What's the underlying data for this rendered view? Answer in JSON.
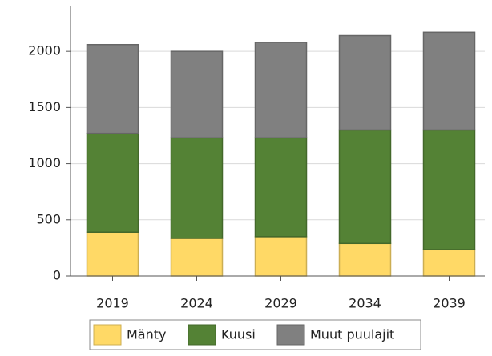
{
  "chart_data": {
    "type": "stacked_bar",
    "categories": [
      "2019",
      "2024",
      "2029",
      "2034",
      "2039"
    ],
    "series": [
      {
        "name": "Mänty",
        "color": "#ffd966",
        "values": [
          390,
          335,
          350,
          290,
          235
        ]
      },
      {
        "name": "Kuusi",
        "color": "#548235",
        "values": [
          880,
          895,
          880,
          1010,
          1065
        ]
      },
      {
        "name": "Muut puulajit",
        "color": "#808080",
        "values": [
          790,
          770,
          850,
          840,
          870
        ]
      }
    ],
    "ylim": [
      0,
      2400
    ],
    "yticks": [
      0,
      500,
      1000,
      1500,
      2000
    ],
    "grid": true,
    "legend": "bottom"
  }
}
